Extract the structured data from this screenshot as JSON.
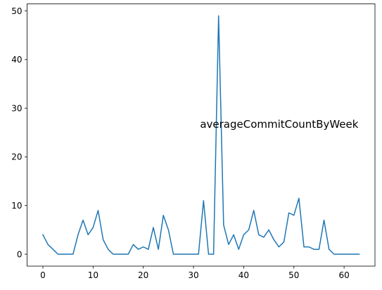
{
  "chart_data": {
    "type": "line",
    "title": "",
    "xlabel": "",
    "ylabel": "",
    "xlim": [
      -3.15,
      66.15
    ],
    "ylim": [
      -2.45,
      51.45
    ],
    "x_ticks": [
      0,
      10,
      20,
      30,
      40,
      50,
      60
    ],
    "y_ticks": [
      0,
      10,
      20,
      30,
      40,
      50
    ],
    "x_tick_labels": [
      "0",
      "10",
      "20",
      "30",
      "40",
      "50",
      "60"
    ],
    "y_tick_labels": [
      "0",
      "10",
      "20",
      "30",
      "40",
      "50"
    ],
    "grid": false,
    "legend": "none",
    "series": [
      {
        "color": "#1f77b4",
        "x": [
          0,
          1,
          2,
          3,
          4,
          5,
          6,
          7,
          8,
          9,
          10,
          11,
          12,
          13,
          14,
          15,
          16,
          17,
          18,
          19,
          20,
          21,
          22,
          23,
          24,
          25,
          26,
          27,
          28,
          29,
          30,
          31,
          32,
          33,
          34,
          35,
          36,
          37,
          38,
          39,
          40,
          41,
          42,
          43,
          44,
          45,
          46,
          47,
          48,
          49,
          50,
          51,
          52,
          53,
          54,
          55,
          56,
          57,
          58,
          59,
          60,
          61,
          62,
          63
        ],
        "values": [
          4,
          2,
          1,
          0,
          0,
          0,
          0,
          4,
          7,
          4,
          5.5,
          9,
          3,
          1,
          0,
          0,
          0,
          0,
          2,
          1,
          1.5,
          1,
          5.5,
          1,
          8,
          5,
          0,
          0,
          0,
          0,
          0,
          0,
          11,
          0,
          0,
          49,
          6,
          2,
          4,
          1,
          4,
          5,
          9,
          4,
          3.5,
          5,
          3,
          1.5,
          2.5,
          8.5,
          8,
          11.5,
          1.5,
          1.5,
          1,
          1,
          7,
          1,
          0,
          0,
          0,
          0,
          0,
          0
        ]
      }
    ],
    "annotation": {
      "text": "averageCommitCountByWeek",
      "x": 31.3,
      "y": 26
    }
  }
}
